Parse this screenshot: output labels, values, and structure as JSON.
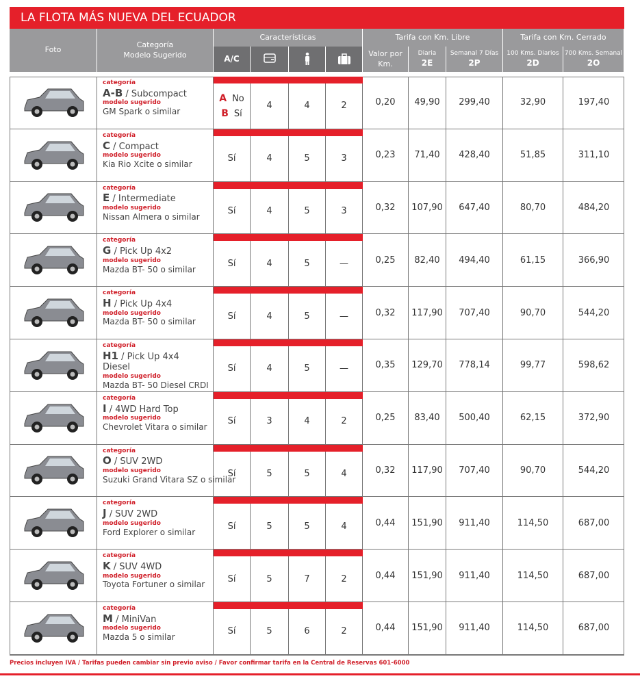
{
  "header": {
    "title": "LA FLOTA MÁS NUEVA DEL ECUADOR"
  },
  "table": {
    "headers": {
      "photo": "Foto",
      "category": "Categoría",
      "model": "Modelo Sugerido",
      "features": "Características",
      "ac": "A/C",
      "free_km": "Tarifa con Km. Libre",
      "per_km": "Valor por Km.",
      "daily": "Diaria",
      "daily_code": "2E",
      "weekly": "Semanal 7 Días",
      "weekly_code": "2P",
      "closed_km": "Tarifa con Km. Cerrado",
      "d100": "100 Kms. Diarios",
      "d100_code": "2D",
      "w700": "700 Kms. Semanal",
      "w700_code": "2O"
    },
    "category_label": "categoría",
    "model_label": "modelo sugerido",
    "rows": [
      {
        "code": "A-B",
        "name": "/ Subcompact",
        "model": "GM Spark o similar",
        "ac": [
          {
            "code": "A",
            "value": "No"
          },
          {
            "code": "B",
            "value": "Sí"
          }
        ],
        "doors": "4",
        "passengers": "4",
        "luggage": "2",
        "per_km": "0,20",
        "daily": "49,90",
        "weekly": "299,40",
        "d100": "32,90",
        "w700": "197,40"
      },
      {
        "code": "C",
        "name": "/ Compact",
        "model": "Kia Rio Xcite o similar",
        "ac": [
          {
            "value": "Sí"
          }
        ],
        "doors": "4",
        "passengers": "5",
        "luggage": "3",
        "per_km": "0,23",
        "daily": "71,40",
        "weekly": "428,40",
        "d100": "51,85",
        "w700": "311,10"
      },
      {
        "code": "E",
        "name": "/ Intermediate",
        "model": "Nissan Almera o similar",
        "ac": [
          {
            "value": "Sí"
          }
        ],
        "doors": "4",
        "passengers": "5",
        "luggage": "3",
        "per_km": "0,32",
        "daily": "107,90",
        "weekly": "647,40",
        "d100": "80,70",
        "w700": "484,20"
      },
      {
        "code": "G",
        "name": "/ Pick Up 4x2",
        "model": "Mazda BT- 50 o similar",
        "ac": [
          {
            "value": "Sí"
          }
        ],
        "doors": "4",
        "passengers": "5",
        "luggage": "—",
        "per_km": "0,25",
        "daily": "82,40",
        "weekly": "494,40",
        "d100": "61,15",
        "w700": "366,90"
      },
      {
        "code": "H",
        "name": "/ Pick Up 4x4",
        "model": "Mazda BT- 50 o similar",
        "ac": [
          {
            "value": "Sí"
          }
        ],
        "doors": "4",
        "passengers": "5",
        "luggage": "—",
        "per_km": "0,32",
        "daily": "117,90",
        "weekly": "707,40",
        "d100": "90,70",
        "w700": "544,20"
      },
      {
        "code": "H1",
        "name": "/ Pick Up 4x4 Diesel",
        "model": "Mazda BT- 50 Diesel CRDI",
        "ac": [
          {
            "value": "Sí"
          }
        ],
        "doors": "4",
        "passengers": "5",
        "luggage": "—",
        "per_km": "0,35",
        "daily": "129,70",
        "weekly": "778,14",
        "d100": "99,77",
        "w700": "598,62"
      },
      {
        "code": "I",
        "name": "/ 4WD Hard Top",
        "model": "Chevrolet Vitara o similar",
        "ac": [
          {
            "value": "Sí"
          }
        ],
        "doors": "3",
        "passengers": "4",
        "luggage": "2",
        "per_km": "0,25",
        "daily": "83,40",
        "weekly": "500,40",
        "d100": "62,15",
        "w700": "372,90"
      },
      {
        "code": "O",
        "name": "/ SUV 2WD",
        "model": "Suzuki Grand Vitara SZ o similar",
        "ac": [
          {
            "value": "Sí"
          }
        ],
        "doors": "5",
        "passengers": "5",
        "luggage": "4",
        "per_km": "0,32",
        "daily": "117,90",
        "weekly": "707,40",
        "d100": "90,70",
        "w700": "544,20"
      },
      {
        "code": "J",
        "name": "/ SUV 2WD",
        "model": "Ford Explorer o similar",
        "ac": [
          {
            "value": "Sí"
          }
        ],
        "doors": "5",
        "passengers": "5",
        "luggage": "4",
        "per_km": "0,44",
        "daily": "151,90",
        "weekly": "911,40",
        "d100": "114,50",
        "w700": "687,00"
      },
      {
        "code": "K",
        "name": "/ SUV 4WD",
        "model": "Toyota Fortuner o similar",
        "ac": [
          {
            "value": "Sí"
          }
        ],
        "doors": "5",
        "passengers": "7",
        "luggage": "2",
        "per_km": "0,44",
        "daily": "151,90",
        "weekly": "911,40",
        "d100": "114,50",
        "w700": "687,00"
      },
      {
        "code": "M",
        "name": "/ MiniVan",
        "model": "Mazda 5 o similar",
        "ac": [
          {
            "value": "Sí"
          }
        ],
        "doors": "5",
        "passengers": "6",
        "luggage": "2",
        "per_km": "0,44",
        "daily": "151,90",
        "weekly": "911,40",
        "d100": "114,50",
        "w700": "687,00"
      }
    ]
  },
  "footer": {
    "note": "Precios incluyen IVA / Tarifas pueden cambiar sin previo aviso / Favor confirmar tarifa en la Central de Reservas 601-6000"
  }
}
